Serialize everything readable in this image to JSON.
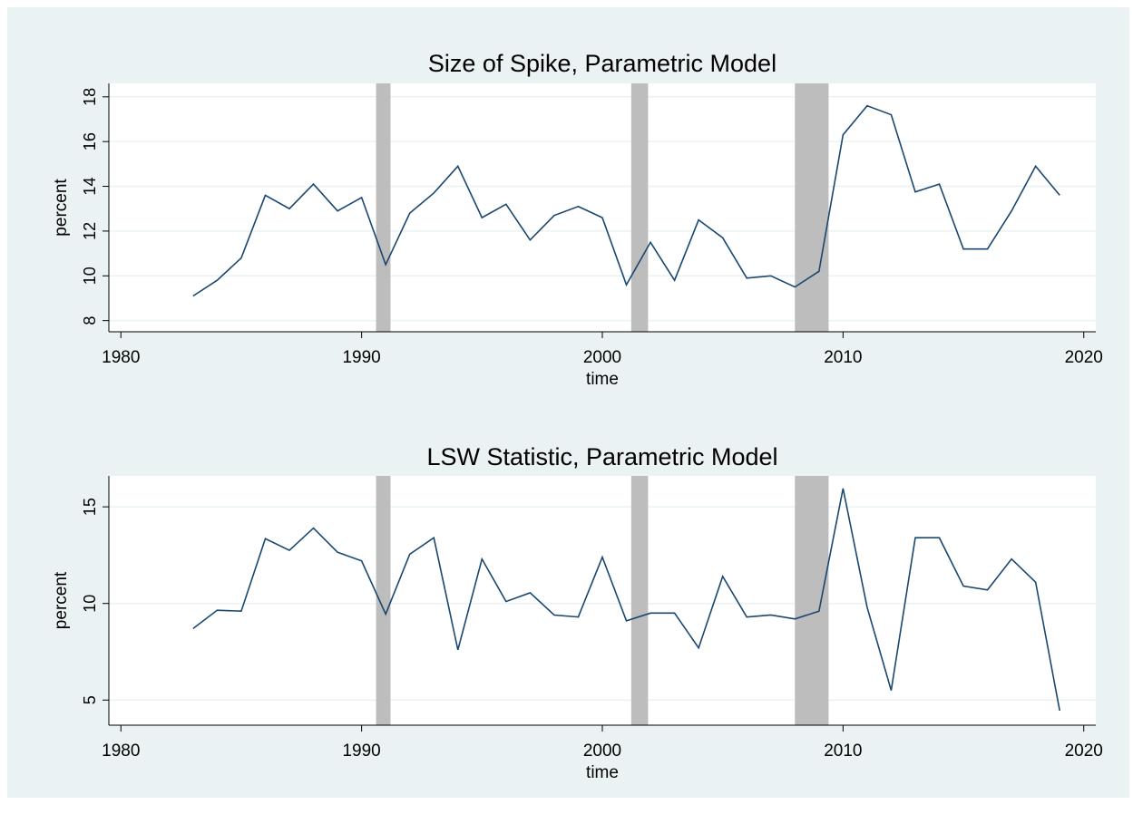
{
  "chart_data": [
    {
      "type": "line",
      "title": "Size of Spike, Parametric Model",
      "xlabel": "time",
      "ylabel": "percent",
      "x": [
        1983,
        1984,
        1985,
        1986,
        1987,
        1988,
        1989,
        1990,
        1991,
        1992,
        1993,
        1994,
        1995,
        1996,
        1997,
        1998,
        1999,
        2000,
        2001,
        2002,
        2003,
        2004,
        2005,
        2006,
        2007,
        2008,
        2009,
        2010,
        2011,
        2012,
        2013,
        2014,
        2015,
        2016,
        2017,
        2018,
        2019
      ],
      "series": [
        {
          "color": "#1a476f",
          "values": [
            9.1,
            9.8,
            10.8,
            13.6,
            13.0,
            14.1,
            12.9,
            13.5,
            10.5,
            12.8,
            13.7,
            14.9,
            12.6,
            13.2,
            11.6,
            12.7,
            13.1,
            12.6,
            9.6,
            11.5,
            9.8,
            12.5,
            11.7,
            9.9,
            10.0,
            9.5,
            10.2,
            16.3,
            17.6,
            17.2,
            13.75,
            14.1,
            11.2,
            11.2,
            12.9,
            14.9,
            13.6
          ]
        }
      ],
      "xlim": [
        1979.5,
        2020.5
      ],
      "xticks": [
        1980,
        1990,
        2000,
        2010,
        2020
      ],
      "ylim": [
        7.5,
        18.6
      ],
      "yticks": [
        8,
        10,
        12,
        14,
        16,
        18
      ],
      "grid": true,
      "shaded_regions": [
        {
          "start": 1990.6,
          "end": 1991.2
        },
        {
          "start": 2001.2,
          "end": 2001.9
        },
        {
          "start": 2008.0,
          "end": 2009.4
        }
      ],
      "shade_color": "#bdbdbd"
    },
    {
      "type": "line",
      "title": "LSW Statistic, Parametric Model",
      "xlabel": "time",
      "ylabel": "percent",
      "x": [
        1983,
        1984,
        1985,
        1986,
        1987,
        1988,
        1989,
        1990,
        1991,
        1992,
        1993,
        1994,
        1995,
        1996,
        1997,
        1998,
        1999,
        2000,
        2001,
        2002,
        2003,
        2004,
        2005,
        2006,
        2007,
        2008,
        2009,
        2010,
        2011,
        2012,
        2013,
        2014,
        2015,
        2016,
        2017,
        2018,
        2019
      ],
      "series": [
        {
          "color": "#1a476f",
          "values": [
            8.7,
            9.65,
            9.6,
            13.35,
            12.75,
            13.9,
            12.65,
            12.2,
            9.45,
            12.55,
            13.4,
            7.6,
            12.3,
            10.1,
            10.55,
            9.4,
            9.3,
            12.4,
            9.1,
            9.5,
            9.5,
            7.7,
            11.4,
            9.3,
            9.4,
            9.2,
            9.6,
            15.95,
            9.8,
            5.5,
            13.4,
            13.4,
            10.9,
            10.7,
            12.3,
            11.1,
            4.45
          ]
        }
      ],
      "xlim": [
        1979.5,
        2020.5
      ],
      "xticks": [
        1980,
        1990,
        2000,
        2010,
        2020
      ],
      "ylim": [
        3.7,
        16.6
      ],
      "yticks": [
        5,
        10,
        15
      ],
      "grid": true,
      "shaded_regions": [
        {
          "start": 1990.6,
          "end": 1991.2
        },
        {
          "start": 2001.2,
          "end": 2001.9
        },
        {
          "start": 2008.0,
          "end": 2009.4
        }
      ],
      "shade_color": "#bdbdbd"
    }
  ]
}
